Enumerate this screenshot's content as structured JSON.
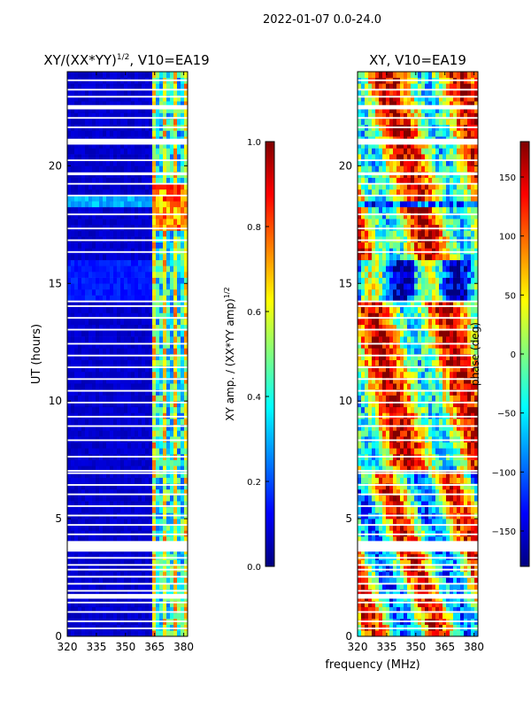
{
  "suptitle": "2022-01-07 0.0-24.0",
  "chart_data": [
    {
      "type": "heatmap",
      "title_main": "XY/(XX*YY)",
      "title_sup": "1/2",
      "title_suffix": ", V10=EA19",
      "xlabel": "",
      "ylabel": "UT (hours)",
      "x_range": [
        320,
        382
      ],
      "x_ticks": [
        "320",
        "335",
        "350",
        "365",
        "380"
      ],
      "y_range": [
        0,
        24
      ],
      "y_ticks": [
        "0",
        "5",
        "10",
        "15",
        "20"
      ],
      "colorbar": {
        "label_main": "XY amp. / (XX*YY amp)",
        "label_sup": "1/2",
        "range": [
          0.0,
          1.0
        ],
        "ticks": [
          "0.0",
          "0.2",
          "0.4",
          "0.6",
          "0.8",
          "1.0"
        ]
      },
      "description_values": {
        "low_freq_level": 0.05,
        "high_freq_level_range": [
          0.2,
          0.9
        ],
        "high_freq_band_mhz": [
          362,
          382
        ],
        "peak_band_hours": [
          17.2,
          19.2
        ]
      }
    },
    {
      "type": "heatmap",
      "title_main": "XY, V10=EA19",
      "xlabel": "frequency (MHz)",
      "ylabel": "",
      "x_range": [
        320,
        382
      ],
      "x_ticks": [
        "320",
        "335",
        "350",
        "365",
        "380"
      ],
      "y_range": [
        0,
        24
      ],
      "y_ticks": [
        "0",
        "5",
        "10",
        "15",
        "20"
      ],
      "colorbar": {
        "label_main": "phase (deg)",
        "range": [
          -180,
          180
        ],
        "ticks": [
          "150",
          "100",
          "50",
          "0",
          "−50",
          "−100",
          "−150"
        ],
        "tick_values": [
          150,
          100,
          50,
          0,
          -50,
          -100,
          -150
        ]
      }
    }
  ],
  "colors": {
    "jet_low": "#00007f",
    "jet_mid": "#7fff7f",
    "jet_high": "#7f0000",
    "gap": "#ffffff",
    "axis": "#000000"
  }
}
